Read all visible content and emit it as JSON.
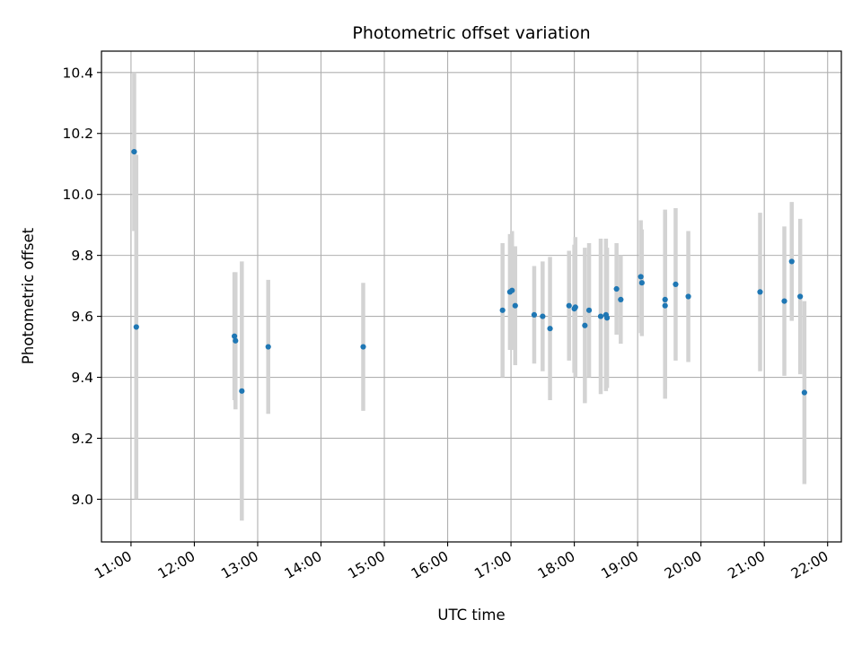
{
  "chart_data": {
    "type": "scatter",
    "title": "Photometric offset variation",
    "xlabel": "UTC time",
    "ylabel": "Photometric offset",
    "x_ticks": [
      "11:00",
      "12:00",
      "13:00",
      "14:00",
      "15:00",
      "16:00",
      "17:00",
      "18:00",
      "19:00",
      "20:00",
      "21:00",
      "22:00"
    ],
    "y_ticks": [
      "9.0",
      "9.2",
      "9.4",
      "9.6",
      "9.8",
      "10.0",
      "10.2",
      "10.4"
    ],
    "xlim": [
      "10:32",
      "22:13"
    ],
    "ylim": [
      8.86,
      10.47
    ],
    "grid": true,
    "colors": {
      "points": "#1f77b4",
      "errorbars": "#d3d3d3",
      "grid": "#b0b0b0"
    },
    "points": [
      {
        "x": "11:03",
        "y": 10.14,
        "err": 0.26
      },
      {
        "x": "11:05",
        "y": 9.565,
        "err": 0.565
      },
      {
        "x": "12:38",
        "y": 9.535,
        "err": 0.21
      },
      {
        "x": "12:39",
        "y": 9.52,
        "err": 0.225
      },
      {
        "x": "12:45",
        "y": 9.355,
        "err": 0.425
      },
      {
        "x": "13:10",
        "y": 9.5,
        "err": 0.22
      },
      {
        "x": "14:40",
        "y": 9.5,
        "err": 0.21
      },
      {
        "x": "16:52",
        "y": 9.62,
        "err": 0.22
      },
      {
        "x": "16:59",
        "y": 9.68,
        "err": 0.19
      },
      {
        "x": "17:01",
        "y": 9.685,
        "err": 0.195
      },
      {
        "x": "17:04",
        "y": 9.635,
        "err": 0.195
      },
      {
        "x": "17:22",
        "y": 9.605,
        "err": 0.16
      },
      {
        "x": "17:30",
        "y": 9.6,
        "err": 0.18
      },
      {
        "x": "17:37",
        "y": 9.56,
        "err": 0.235
      },
      {
        "x": "17:55",
        "y": 9.635,
        "err": 0.18
      },
      {
        "x": "18:00",
        "y": 9.625,
        "err": 0.21
      },
      {
        "x": "18:01",
        "y": 9.63,
        "err": 0.23
      },
      {
        "x": "18:10",
        "y": 9.57,
        "err": 0.255
      },
      {
        "x": "18:14",
        "y": 9.62,
        "err": 0.22
      },
      {
        "x": "18:25",
        "y": 9.6,
        "err": 0.255
      },
      {
        "x": "18:30",
        "y": 9.605,
        "err": 0.25
      },
      {
        "x": "18:31",
        "y": 9.595,
        "err": 0.23
      },
      {
        "x": "18:40",
        "y": 9.69,
        "err": 0.15
      },
      {
        "x": "18:44",
        "y": 9.655,
        "err": 0.145
      },
      {
        "x": "19:03",
        "y": 9.73,
        "err": 0.185
      },
      {
        "x": "19:04",
        "y": 9.71,
        "err": 0.175
      },
      {
        "x": "19:26",
        "y": 9.655,
        "err": 0.295
      },
      {
        "x": "19:26",
        "y": 9.635,
        "err": 0.305
      },
      {
        "x": "19:36",
        "y": 9.705,
        "err": 0.25
      },
      {
        "x": "19:48",
        "y": 9.665,
        "err": 0.215
      },
      {
        "x": "20:56",
        "y": 9.68,
        "err": 0.26
      },
      {
        "x": "21:19",
        "y": 9.65,
        "err": 0.245
      },
      {
        "x": "21:26",
        "y": 9.78,
        "err": 0.195
      },
      {
        "x": "21:34",
        "y": 9.665,
        "err": 0.255
      },
      {
        "x": "21:38",
        "y": 9.35,
        "err": 0.3
      }
    ]
  }
}
